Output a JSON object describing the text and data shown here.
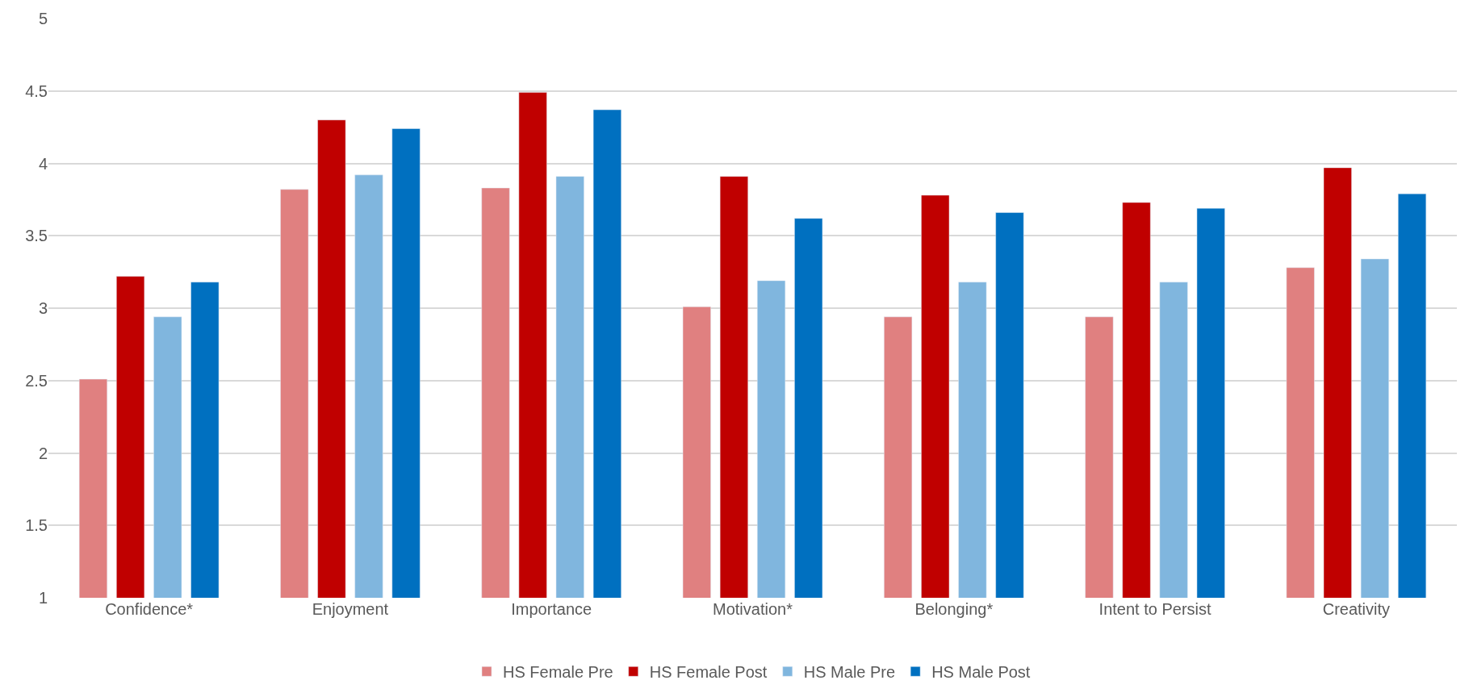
{
  "chart_data": {
    "type": "bar",
    "categories": [
      "Confidence*",
      "Enjoyment",
      "Importance",
      "Motivation*",
      "Belonging*",
      "Intent to Persist",
      "Creativity"
    ],
    "series": [
      {
        "name": "HS Female Pre",
        "color": "#e08080",
        "values": [
          2.51,
          3.82,
          3.83,
          3.01,
          2.94,
          2.94,
          3.28
        ]
      },
      {
        "name": "HS Female Post",
        "color": "#c00000",
        "values": [
          3.22,
          4.3,
          4.49,
          3.91,
          3.78,
          3.73,
          3.97
        ]
      },
      {
        "name": "HS Male Pre",
        "color": "#80b6de",
        "values": [
          2.94,
          3.92,
          3.91,
          3.19,
          3.18,
          3.18,
          3.34
        ]
      },
      {
        "name": "HS Male Post",
        "color": "#0070c0",
        "values": [
          3.18,
          4.24,
          4.37,
          3.62,
          3.66,
          3.69,
          3.79
        ]
      }
    ],
    "ylim": [
      1,
      5
    ],
    "yticks": [
      1,
      1.5,
      2,
      2.5,
      3,
      3.5,
      4,
      4.5,
      5
    ],
    "grid": "y",
    "legend": "bottom"
  }
}
